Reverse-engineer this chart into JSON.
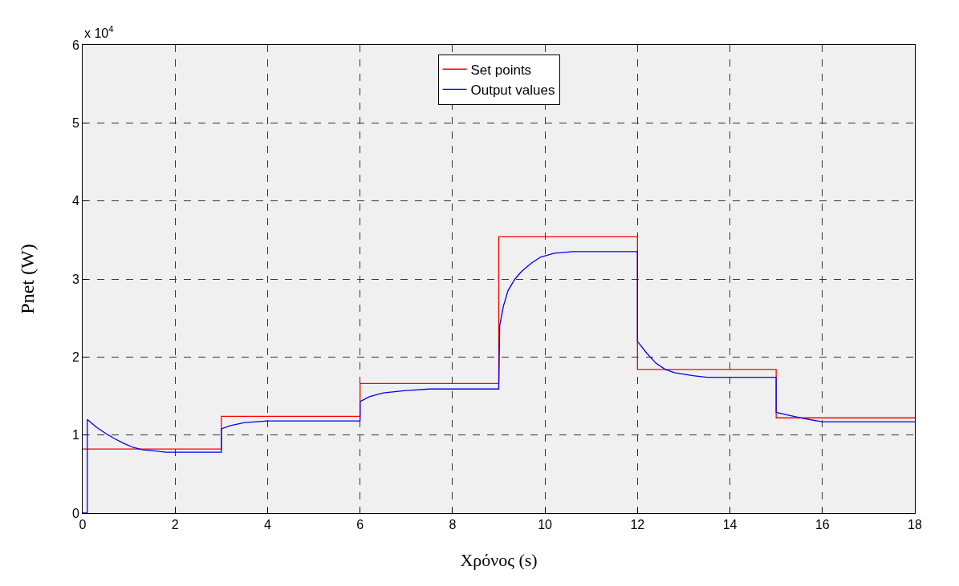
{
  "chart_data": {
    "type": "line",
    "xlabel": "Χρόνος (s)",
    "ylabel": "Pnet (W)",
    "annotations": [
      "x 10$^{4}$"
    ],
    "xlim": [
      0,
      18
    ],
    "xticks": [
      0,
      2,
      4,
      6,
      8,
      10,
      12,
      14,
      16,
      18
    ],
    "ylim": [
      0,
      6
    ],
    "yticks": [
      0,
      1,
      2,
      3,
      4,
      5,
      6
    ],
    "grid": true,
    "legend": "top",
    "line_style": "solid",
    "marker": "none",
    "series": [
      {
        "name": "Set points",
        "color": "#ff0000",
        "x": [
          0,
          3,
          3,
          6,
          6,
          9,
          9,
          12,
          12,
          15,
          15,
          18
        ],
        "values": [
          0.82,
          0.82,
          1.24,
          1.24,
          1.66,
          1.66,
          3.54,
          3.54,
          1.84,
          1.84,
          1.22,
          1.22
        ]
      },
      {
        "name": "Output values",
        "color": "#0000ff",
        "x": [
          0,
          0.1,
          0.1,
          0.3,
          0.5,
          0.7,
          0.9,
          1.1,
          1.3,
          1.5,
          1.8,
          3,
          3,
          3.2,
          3.5,
          4,
          6,
          6,
          6.2,
          6.5,
          7,
          7.5,
          9,
          9.02,
          9.1,
          9.2,
          9.35,
          9.5,
          9.7,
          9.9,
          10.2,
          10.6,
          12,
          12,
          12.2,
          12.4,
          12.6,
          12.8,
          13.2,
          13.5,
          15,
          15,
          15.3,
          15.6,
          16,
          18
        ],
        "values": [
          0,
          0,
          1.2,
          1.1,
          1.02,
          0.95,
          0.89,
          0.84,
          0.81,
          0.8,
          0.78,
          0.78,
          1.08,
          1.12,
          1.16,
          1.18,
          1.18,
          1.43,
          1.49,
          1.54,
          1.57,
          1.59,
          1.59,
          2.4,
          2.65,
          2.85,
          3.0,
          3.1,
          3.2,
          3.28,
          3.33,
          3.35,
          3.35,
          2.2,
          2.05,
          1.92,
          1.84,
          1.8,
          1.76,
          1.74,
          1.74,
          1.29,
          1.25,
          1.21,
          1.17,
          1.17
        ]
      }
    ]
  }
}
